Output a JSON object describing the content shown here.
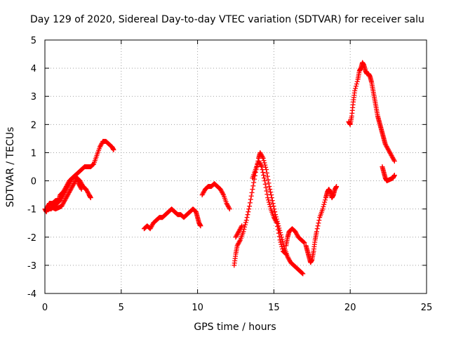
{
  "chart_data": {
    "type": "scatter",
    "title": "Day 129 of 2020, Sidereal Day-to-day VTEC variation (SDTVAR) for receiver salu",
    "xlabel": "GPS time / hours",
    "ylabel": "SDTVAR / TECUs",
    "xlim": [
      0,
      25
    ],
    "ylim": [
      -4,
      5
    ],
    "xticks": [
      "0",
      "5",
      "10",
      "15",
      "20",
      "25"
    ],
    "yticks": [
      "-4",
      "-3",
      "-2",
      "-1",
      "0",
      "1",
      "2",
      "3",
      "4",
      "5"
    ],
    "grid": true,
    "marker": "+",
    "color": "#ff0000",
    "series": [
      {
        "name": "SDTVAR",
        "segments": [
          [
            [
              0.0,
              -1.0
            ],
            [
              0.1,
              -1.1
            ],
            [
              0.2,
              -0.9
            ],
            [
              0.3,
              -0.8
            ],
            [
              0.5,
              -0.8
            ],
            [
              0.7,
              -0.7
            ],
            [
              0.9,
              -0.7
            ],
            [
              1.0,
              -0.5
            ],
            [
              1.2,
              -0.4
            ],
            [
              1.4,
              -0.2
            ],
            [
              1.6,
              0.0
            ],
            [
              1.8,
              0.1
            ],
            [
              2.0,
              0.2
            ],
            [
              2.2,
              0.3
            ],
            [
              2.4,
              0.4
            ],
            [
              2.6,
              0.5
            ],
            [
              2.8,
              0.5
            ],
            [
              3.0,
              0.5
            ],
            [
              3.2,
              0.6
            ],
            [
              3.4,
              0.9
            ],
            [
              3.6,
              1.2
            ],
            [
              3.8,
              1.4
            ],
            [
              4.0,
              1.4
            ],
            [
              4.2,
              1.3
            ],
            [
              4.4,
              1.2
            ],
            [
              4.5,
              1.1
            ]
          ],
          [
            [
              0.1,
              -1.0
            ],
            [
              0.3,
              -1.0
            ],
            [
              0.5,
              -0.95
            ],
            [
              0.7,
              -1.0
            ],
            [
              0.9,
              -0.95
            ],
            [
              1.1,
              -0.9
            ],
            [
              1.3,
              -0.7
            ],
            [
              1.5,
              -0.5
            ],
            [
              1.7,
              -0.3
            ],
            [
              1.9,
              -0.1
            ],
            [
              2.1,
              0.1
            ],
            [
              2.3,
              0.0
            ],
            [
              2.5,
              -0.2
            ],
            [
              2.7,
              -0.3
            ],
            [
              2.9,
              -0.5
            ],
            [
              3.0,
              -0.6
            ]
          ],
          [
            [
              0.2,
              -0.9
            ],
            [
              0.4,
              -1.0
            ],
            [
              0.6,
              -0.9
            ],
            [
              0.8,
              -0.8
            ],
            [
              1.0,
              -0.7
            ],
            [
              1.2,
              -0.5
            ],
            [
              1.4,
              -0.3
            ],
            [
              1.6,
              -0.1
            ],
            [
              1.8,
              0.1
            ],
            [
              2.0,
              0.2
            ],
            [
              2.2,
              -0.1
            ],
            [
              2.4,
              -0.3
            ]
          ],
          [
            [
              6.5,
              -1.7
            ],
            [
              6.7,
              -1.6
            ],
            [
              6.9,
              -1.7
            ],
            [
              7.1,
              -1.5
            ],
            [
              7.3,
              -1.4
            ],
            [
              7.5,
              -1.3
            ],
            [
              7.7,
              -1.3
            ],
            [
              7.9,
              -1.2
            ],
            [
              8.1,
              -1.1
            ],
            [
              8.3,
              -1.0
            ],
            [
              8.5,
              -1.1
            ],
            [
              8.7,
              -1.2
            ],
            [
              8.9,
              -1.2
            ],
            [
              9.1,
              -1.3
            ],
            [
              9.3,
              -1.2
            ],
            [
              9.5,
              -1.1
            ],
            [
              9.7,
              -1.0
            ],
            [
              9.9,
              -1.1
            ],
            [
              10.0,
              -1.3
            ],
            [
              10.1,
              -1.5
            ],
            [
              10.2,
              -1.6
            ]
          ],
          [
            [
              10.3,
              -0.5
            ],
            [
              10.5,
              -0.3
            ],
            [
              10.7,
              -0.2
            ],
            [
              10.9,
              -0.2
            ],
            [
              11.1,
              -0.1
            ],
            [
              11.3,
              -0.2
            ],
            [
              11.5,
              -0.3
            ],
            [
              11.7,
              -0.5
            ],
            [
              11.9,
              -0.8
            ],
            [
              12.1,
              -1.0
            ]
          ],
          [
            [
              12.4,
              -3.0
            ],
            [
              12.5,
              -2.6
            ],
            [
              12.6,
              -2.3
            ],
            [
              12.8,
              -2.1
            ],
            [
              13.0,
              -1.8
            ],
            [
              13.2,
              -1.4
            ],
            [
              13.4,
              -0.9
            ],
            [
              13.6,
              -0.3
            ],
            [
              13.8,
              0.3
            ],
            [
              14.0,
              0.8
            ],
            [
              14.1,
              1.0
            ],
            [
              14.3,
              0.8
            ],
            [
              14.5,
              0.4
            ],
            [
              14.7,
              -0.2
            ],
            [
              14.9,
              -0.7
            ],
            [
              15.1,
              -1.2
            ],
            [
              15.3,
              -1.6
            ],
            [
              15.5,
              -2.0
            ],
            [
              15.7,
              -2.4
            ],
            [
              15.9,
              -2.7
            ],
            [
              16.1,
              -2.9
            ],
            [
              16.3,
              -3.0
            ],
            [
              16.5,
              -3.1
            ],
            [
              16.7,
              -3.2
            ],
            [
              16.9,
              -3.3
            ]
          ],
          [
            [
              13.6,
              0.1
            ],
            [
              13.8,
              0.4
            ],
            [
              14.0,
              0.7
            ],
            [
              14.2,
              0.5
            ],
            [
              14.4,
              0.0
            ],
            [
              14.6,
              -0.6
            ],
            [
              14.8,
              -1.0
            ],
            [
              15.0,
              -1.3
            ],
            [
              15.2,
              -1.5
            ],
            [
              15.4,
              -2.1
            ],
            [
              15.6,
              -2.5
            ],
            [
              15.8,
              -2.6
            ]
          ],
          [
            [
              12.5,
              -2.0
            ],
            [
              12.7,
              -1.8
            ],
            [
              12.9,
              -1.6
            ]
          ],
          [
            [
              15.8,
              -2.3
            ],
            [
              15.9,
              -2.0
            ],
            [
              16.0,
              -1.8
            ],
            [
              16.2,
              -1.7
            ],
            [
              16.4,
              -1.8
            ],
            [
              16.6,
              -2.0
            ],
            [
              16.8,
              -2.1
            ],
            [
              17.0,
              -2.2
            ]
          ],
          [
            [
              17.1,
              -2.3
            ],
            [
              17.2,
              -2.5
            ],
            [
              17.3,
              -2.7
            ],
            [
              17.4,
              -2.9
            ],
            [
              17.5,
              -2.8
            ],
            [
              17.6,
              -2.5
            ],
            [
              17.7,
              -2.1
            ],
            [
              17.8,
              -1.8
            ],
            [
              18.0,
              -1.3
            ],
            [
              18.2,
              -1.0
            ],
            [
              18.4,
              -0.6
            ],
            [
              18.5,
              -0.4
            ],
            [
              18.6,
              -0.3
            ],
            [
              18.7,
              -0.4
            ],
            [
              18.8,
              -0.6
            ],
            [
              18.9,
              -0.5
            ],
            [
              19.0,
              -0.3
            ],
            [
              19.1,
              -0.2
            ]
          ],
          [
            [
              19.9,
              2.1
            ],
            [
              20.0,
              2.0
            ],
            [
              20.1,
              2.3
            ],
            [
              20.2,
              2.8
            ],
            [
              20.3,
              3.2
            ],
            [
              20.5,
              3.6
            ],
            [
              20.6,
              3.9
            ],
            [
              20.7,
              4.0
            ],
            [
              20.8,
              4.2
            ],
            [
              20.9,
              4.1
            ],
            [
              21.0,
              3.9
            ],
            [
              21.1,
              3.8
            ],
            [
              21.2,
              3.8
            ],
            [
              21.3,
              3.7
            ],
            [
              21.4,
              3.5
            ],
            [
              21.5,
              3.2
            ],
            [
              21.6,
              2.9
            ],
            [
              21.7,
              2.6
            ],
            [
              21.8,
              2.3
            ],
            [
              21.9,
              2.1
            ],
            [
              22.0,
              1.9
            ],
            [
              22.1,
              1.7
            ],
            [
              22.2,
              1.5
            ],
            [
              22.3,
              1.3
            ],
            [
              22.5,
              1.1
            ],
            [
              22.7,
              0.9
            ],
            [
              22.9,
              0.7
            ]
          ],
          [
            [
              22.1,
              0.5
            ],
            [
              22.2,
              0.3
            ],
            [
              22.3,
              0.1
            ],
            [
              22.4,
              0.0
            ],
            [
              22.6,
              0.05
            ],
            [
              22.8,
              0.1
            ],
            [
              22.9,
              0.2
            ]
          ]
        ]
      }
    ]
  }
}
